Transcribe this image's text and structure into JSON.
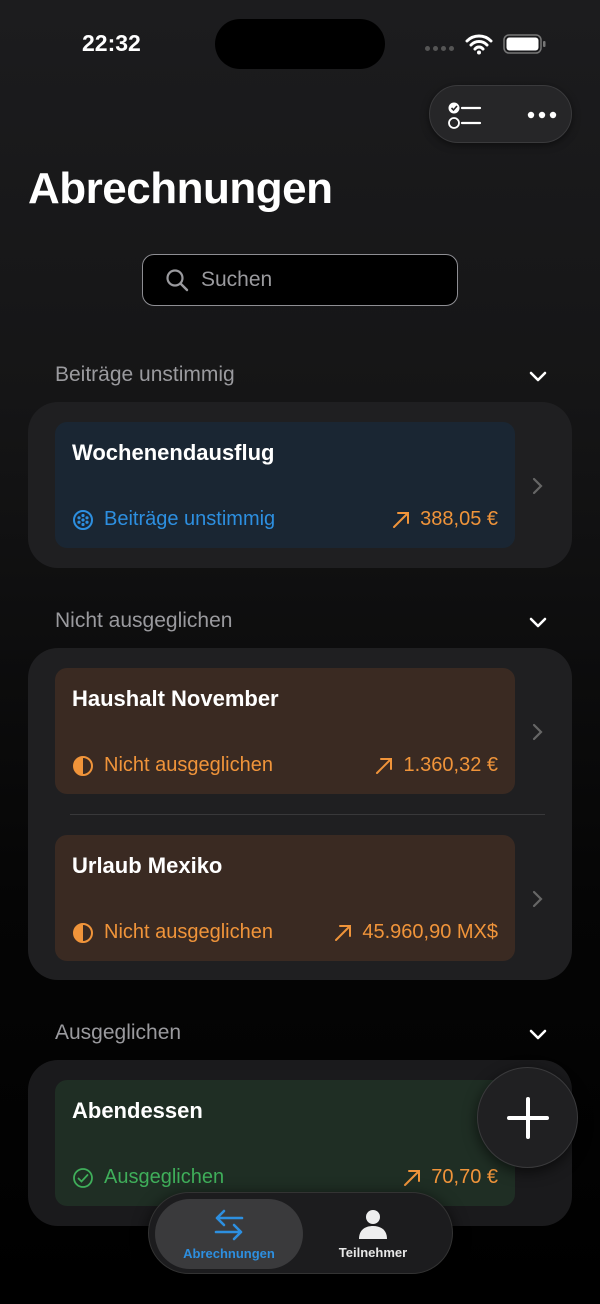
{
  "status_bar": {
    "time": "22:32"
  },
  "header": {
    "title": "Abrechnungen"
  },
  "search": {
    "placeholder": "Suchen"
  },
  "sections": [
    {
      "label": "Beiträge unstimmig",
      "items": [
        {
          "name": "Wochenendausflug",
          "status": "Beiträge unstimmig",
          "amount": "388,05 €"
        }
      ]
    },
    {
      "label": "Nicht ausgeglichen",
      "items": [
        {
          "name": "Haushalt November",
          "status": "Nicht ausgeglichen",
          "amount": "1.360,32 €"
        },
        {
          "name": "Urlaub Mexiko",
          "status": "Nicht ausgeglichen",
          "amount": "45.960,90 MX$"
        }
      ]
    },
    {
      "label": "Ausgeglichen",
      "items": [
        {
          "name": "Abendessen",
          "status": "Ausgeglichen",
          "amount": "70,70 €"
        }
      ]
    }
  ],
  "tabs": [
    {
      "label": "Abrechnungen",
      "icon": "arrows-left-right-icon",
      "selected": true
    },
    {
      "label": "Teilnehmer",
      "icon": "person-icon",
      "selected": false
    }
  ],
  "colors": {
    "blue": "#2d8fe0",
    "orange": "#f0943a",
    "green": "#3fae5a",
    "blue_bg": "#1a2633",
    "orange_bg": "#3a2a22",
    "green_bg": "#1f2e24"
  }
}
